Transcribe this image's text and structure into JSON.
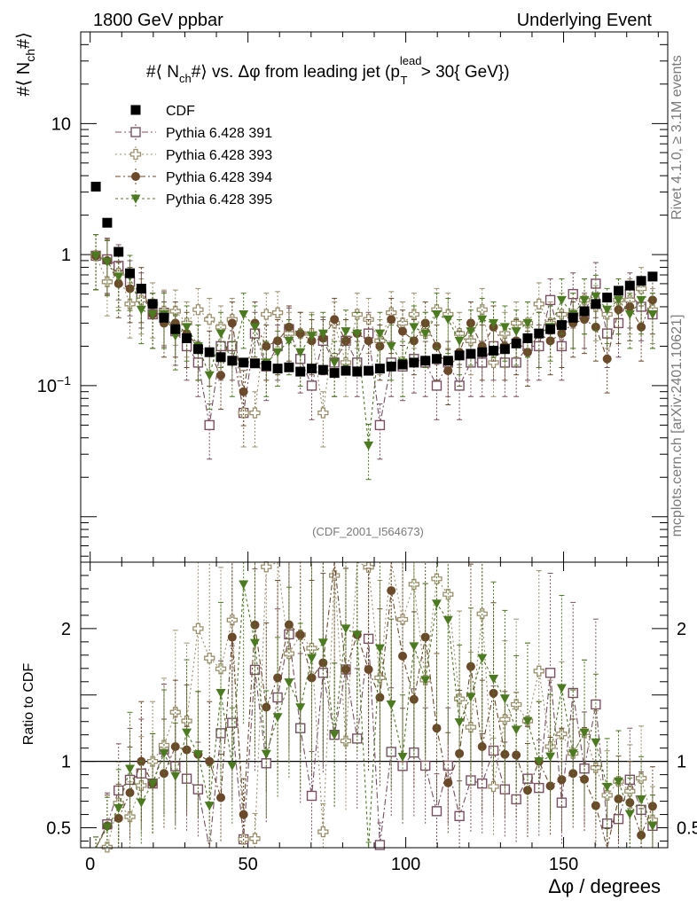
{
  "header": {
    "left": "1800 GeV ppbar",
    "right": "Underlying Event"
  },
  "side": {
    "rivet": "Rivet 4.1.0, ≥ 3.1M events",
    "mcplots": "mcplots.cern.ch [arXiv:2401.10621]"
  },
  "chart_data": {
    "type": "scatter",
    "title": "#⟨ N_ch #⟩ vs. Δφ from leading jet (p_T^lead > 30{ GeV})",
    "title_parts": {
      "pre": "#⟨ N",
      "sub1": "ch",
      "mid": "#⟩ vs. Δφ from leading jet  (p",
      "sup": "lead",
      "sub2": "T",
      "post": " > 30{ GeV})"
    },
    "ylabel_parts": {
      "pre": "#⟨ N",
      "sub": "ch",
      "post": "#⟩"
    },
    "xlabel": "Δφ / degrees",
    "ratio_ylabel": "Ratio to CDF",
    "watermark": "(CDF_2001_I564673)",
    "xlim": [
      -3,
      183
    ],
    "ylim": [
      0.0045,
      50
    ],
    "yscale": "log",
    "ratio_ylim": [
      0.35,
      2.5
    ],
    "x_ticks": [
      "0",
      "50",
      "100",
      "150"
    ],
    "y_ticks": [
      "10^-1",
      "1",
      "10"
    ],
    "ratio_ticks": [
      "0.5",
      "1",
      "2"
    ],
    "x": [
      1.8,
      5.4,
      9,
      12.6,
      16.2,
      19.8,
      23.4,
      27,
      30.6,
      34.2,
      37.8,
      41.4,
      45,
      48.6,
      52.2,
      55.8,
      59.4,
      63,
      66.6,
      70.2,
      73.8,
      77.4,
      81,
      84.6,
      88.2,
      91.8,
      95.4,
      99,
      102.6,
      106.2,
      109.8,
      113.4,
      117,
      120.6,
      124.2,
      127.8,
      131.4,
      135,
      138.6,
      142.2,
      145.8,
      149.4,
      153,
      156.6,
      160.2,
      163.8,
      167.4,
      171,
      174.6,
      178.2
    ],
    "series": [
      {
        "name": "CDF",
        "color": "#000000",
        "marker": "square-filled",
        "values": [
          3.3,
          1.75,
          1.05,
          0.72,
          0.55,
          0.42,
          0.33,
          0.27,
          0.23,
          0.19,
          0.18,
          0.165,
          0.155,
          0.15,
          0.148,
          0.142,
          0.135,
          0.138,
          0.128,
          0.135,
          0.132,
          0.125,
          0.13,
          0.128,
          0.13,
          0.135,
          0.14,
          0.145,
          0.15,
          0.155,
          0.16,
          0.155,
          0.17,
          0.175,
          0.18,
          0.185,
          0.19,
          0.21,
          0.23,
          0.25,
          0.27,
          0.29,
          0.33,
          0.37,
          0.42,
          0.47,
          0.53,
          0.58,
          0.63,
          0.68
        ]
      },
      {
        "name": "Pythia 6.428 391",
        "color": "#7a4f63",
        "marker": "square-open",
        "values": [
          0.98,
          0.92,
          0.82,
          0.62,
          0.5,
          0.35,
          0.36,
          0.26,
          0.2,
          0.15,
          0.05,
          0.2,
          0.2,
          0.062,
          0.25,
          0.14,
          0.2,
          0.27,
          0.16,
          0.1,
          0.22,
          0.15,
          0.22,
          0.15,
          0.25,
          0.05,
          0.15,
          0.14,
          0.16,
          0.15,
          0.1,
          0.15,
          0.1,
          0.15,
          0.15,
          0.2,
          0.15,
          0.15,
          0.2,
          0.2,
          0.45,
          0.2,
          0.5,
          0.35,
          0.6,
          0.25,
          0.3,
          0.5,
          0.4,
          0.35
        ]
      },
      {
        "name": "Pythia 6.428 393",
        "color": "#9b8f6a",
        "marker": "cross-open",
        "values": [
          0.98,
          0.62,
          0.72,
          0.42,
          0.45,
          0.42,
          0.37,
          0.37,
          0.3,
          0.38,
          0.32,
          0.28,
          0.32,
          0.062,
          0.062,
          0.35,
          0.36,
          0.25,
          0.25,
          0.25,
          0.062,
          0.3,
          0.15,
          0.35,
          0.32,
          0.22,
          0.36,
          0.3,
          0.35,
          0.25,
          0.38,
          0.35,
          0.25,
          0.22,
          0.38,
          0.15,
          0.25,
          0.3,
          0.3,
          0.42,
          0.3,
          0.35,
          0.35,
          0.45,
          0.4,
          0.35,
          0.45,
          0.45,
          0.55,
          0.38
        ]
      },
      {
        "name": "Pythia 6.428 394",
        "color": "#6b4a2b",
        "marker": "circle-filled",
        "values": [
          0.98,
          0.9,
          0.6,
          0.55,
          0.55,
          0.35,
          0.3,
          0.3,
          0.25,
          0.2,
          0.18,
          0.12,
          0.3,
          0.09,
          0.3,
          0.2,
          0.22,
          0.28,
          0.25,
          0.22,
          0.23,
          0.32,
          0.22,
          0.25,
          0.22,
          0.2,
          0.32,
          0.26,
          0.22,
          0.3,
          0.2,
          0.13,
          0.18,
          0.3,
          0.2,
          0.28,
          0.2,
          0.22,
          0.18,
          0.25,
          0.22,
          0.25,
          0.3,
          0.32,
          0.28,
          0.16,
          0.38,
          0.4,
          0.28,
          0.45
        ]
      },
      {
        "name": "Pythia 6.428 395",
        "color": "#4b7a20",
        "marker": "triangle-down-filled",
        "values": [
          0.98,
          0.88,
          0.68,
          0.68,
          0.38,
          0.35,
          0.35,
          0.24,
          0.28,
          0.2,
          0.12,
          0.25,
          0.15,
          0.35,
          0.28,
          0.15,
          0.18,
          0.22,
          0.18,
          0.24,
          0.25,
          0.15,
          0.26,
          0.25,
          0.035,
          0.25,
          0.2,
          0.15,
          0.28,
          0.25,
          0.35,
          0.32,
          0.22,
          0.26,
          0.32,
          0.3,
          0.28,
          0.26,
          0.3,
          0.25,
          0.28,
          0.45,
          0.35,
          0.45,
          0.48,
          0.38,
          0.45,
          0.35,
          0.45,
          0.35
        ]
      }
    ]
  }
}
